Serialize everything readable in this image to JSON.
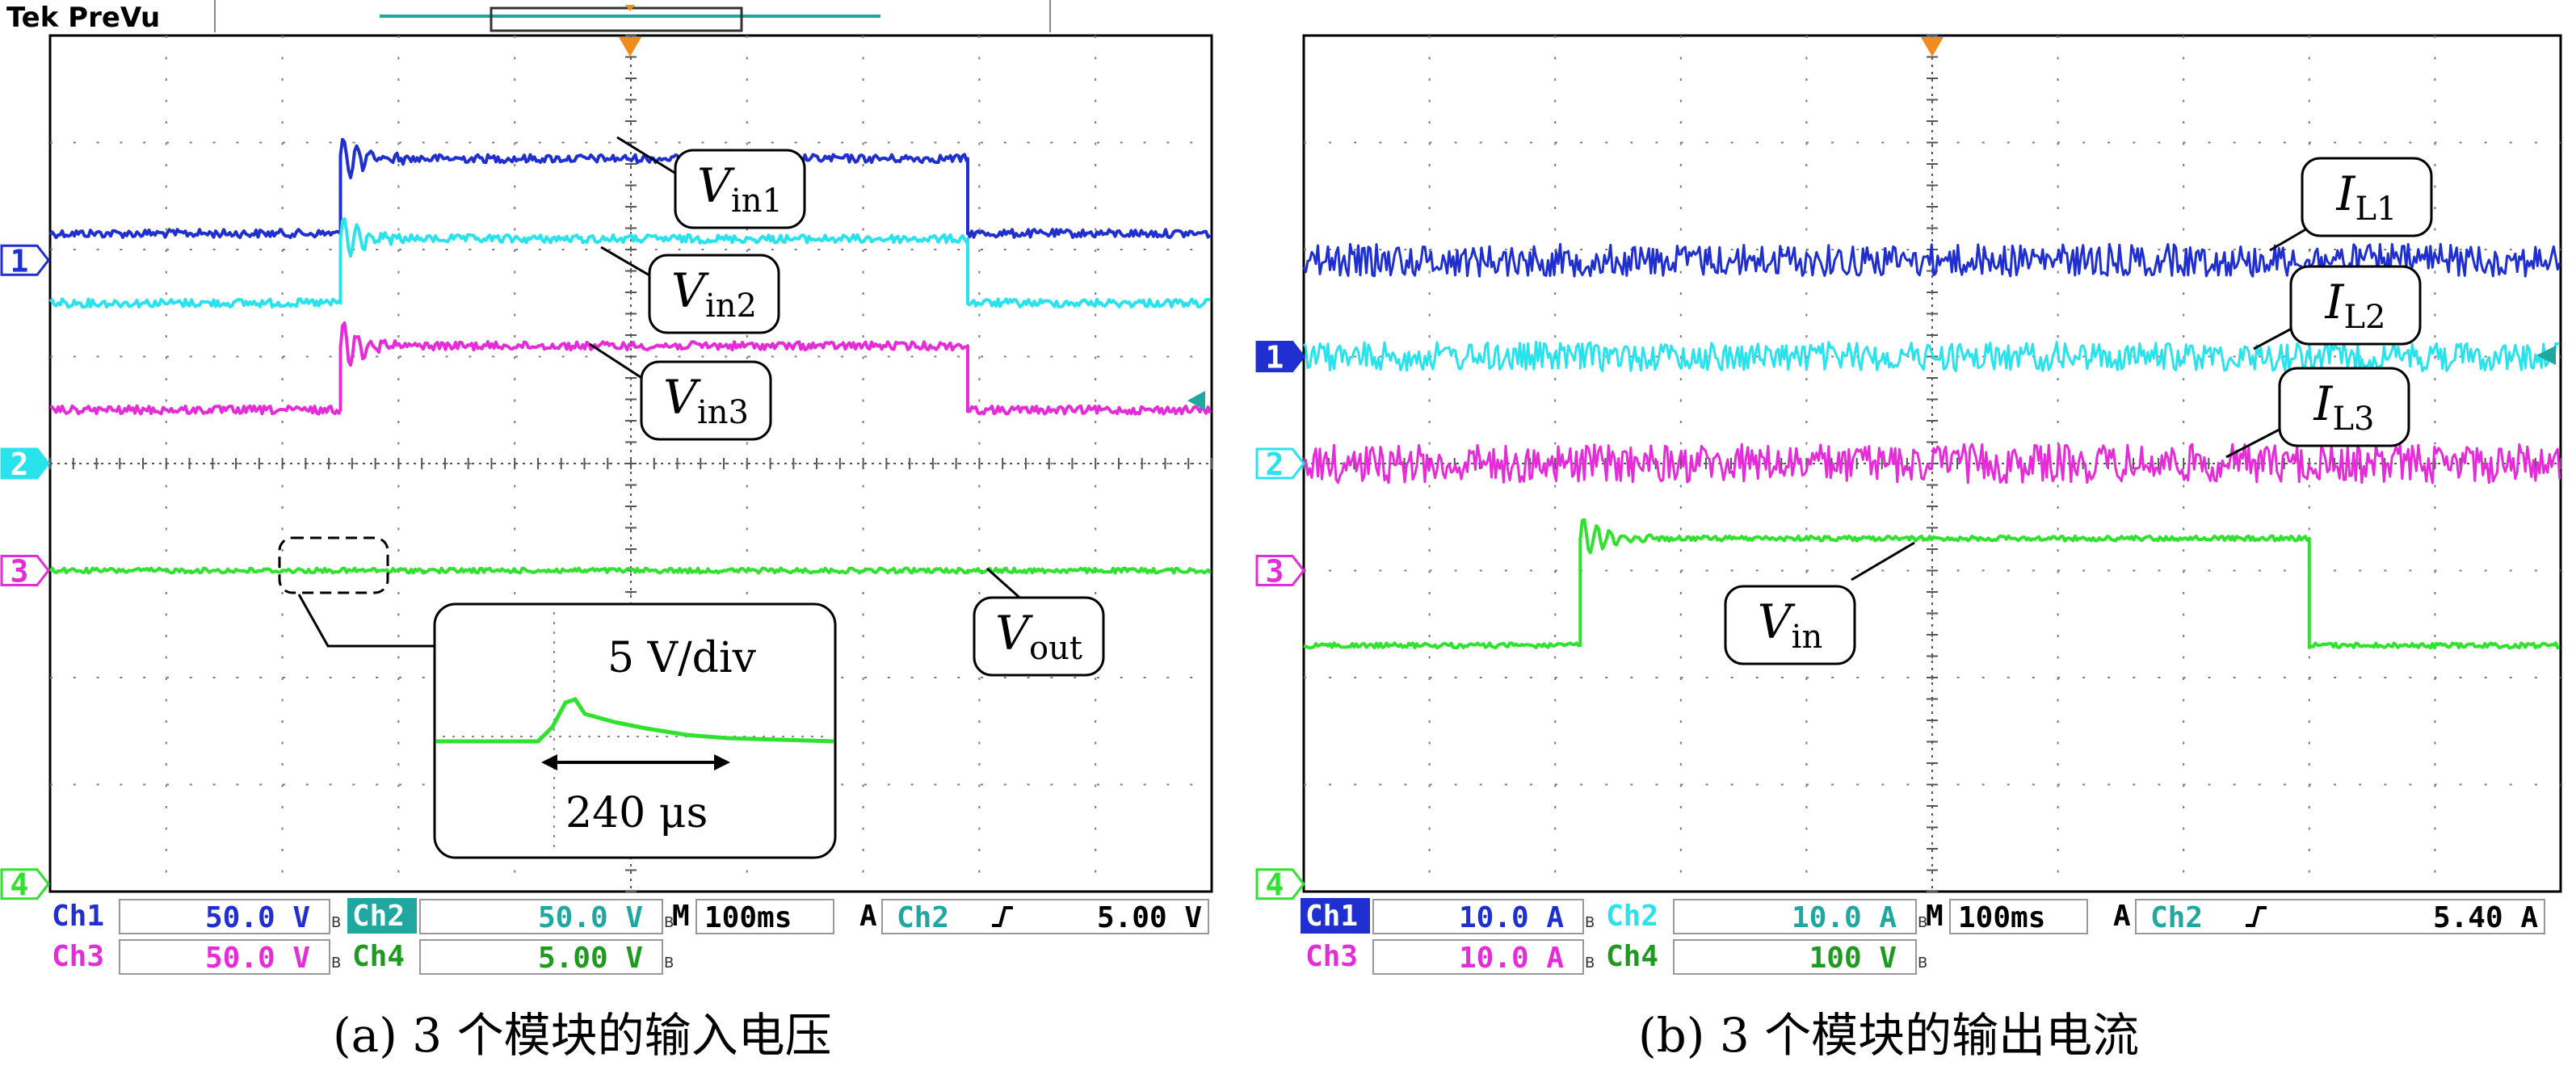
{
  "colors": {
    "ch1": "#1f2fd0",
    "ch2": "#29e3ec",
    "ch3": "#e62cd8",
    "ch4": "#2ee22e",
    "grid": "#7a7a7a",
    "frame": "#000000",
    "trigger": "#f08c1e",
    "header_line": "#1fa7a0"
  },
  "panel_a": {
    "header": "Tek PreVu",
    "trace_labels": [
      {
        "text": "V",
        "sub": "in1"
      },
      {
        "text": "V",
        "sub": "in2"
      },
      {
        "text": "V",
        "sub": "in3"
      },
      {
        "text": "V",
        "sub": "out"
      }
    ],
    "inset": {
      "scale": "5 V/div",
      "duration": "240 μs"
    },
    "ch_markers": [
      "1",
      "2",
      "3",
      "4"
    ],
    "status_row1": {
      "ch1": "Ch1",
      "ch1_val": "50.0 V",
      "ch2": "Ch2",
      "ch2_val": "50.0 V",
      "m": "M",
      "timebase": "100ms",
      "a": "A",
      "trig_ch": "Ch2",
      "trig_level": "5.00 V"
    },
    "status_row2": {
      "ch3": "Ch3",
      "ch3_val": "50.0 V",
      "ch4": "Ch4",
      "ch4_val": "5.00 V"
    },
    "caption": "(a) 3 个模块的输入电压"
  },
  "panel_b": {
    "trace_labels": [
      {
        "text": "I",
        "sub": "L1"
      },
      {
        "text": "I",
        "sub": "L2"
      },
      {
        "text": "I",
        "sub": "L3"
      },
      {
        "text": "V",
        "sub": "in"
      }
    ],
    "ch_markers": [
      "1",
      "2",
      "3",
      "4"
    ],
    "status_row1": {
      "ch1": "Ch1",
      "ch1_val": "10.0 A",
      "ch2": "Ch2",
      "ch2_val": "10.0 A",
      "m": "M",
      "timebase": "100ms",
      "a": "A",
      "trig_ch": "Ch2",
      "trig_level": "5.40 A"
    },
    "status_row2": {
      "ch3": "Ch3",
      "ch3_val": "10.0 A",
      "ch4": "Ch4",
      "ch4_val": "100 V"
    },
    "caption": "(b) 3 个模块的输出电流"
  },
  "chart_data": [
    {
      "type": "line",
      "grid": true,
      "x_divisions": 10,
      "y_divisions": 8,
      "x_unit_per_div": "100ms",
      "x": [
        0,
        2.5,
        2.5,
        7.9,
        7.9,
        10
      ],
      "series": [
        {
          "name": "Vin1",
          "channel": "Ch1",
          "scale": "50.0 V",
          "values": [
            6.15,
            6.15,
            6.85,
            6.85,
            6.15,
            6.15
          ]
        },
        {
          "name": "Vin2",
          "channel": "Ch2",
          "scale": "50.0 V",
          "values": [
            5.5,
            5.5,
            6.1,
            6.1,
            5.5,
            5.5
          ]
        },
        {
          "name": "Vin3",
          "channel": "Ch3",
          "scale": "50.0 V",
          "values": [
            4.5,
            4.5,
            5.1,
            5.1,
            4.5,
            4.5
          ]
        },
        {
          "name": "Vout",
          "channel": "Ch4",
          "scale": "5.00 V",
          "values": [
            3.0,
            3.0,
            3.0,
            3.0,
            3.0,
            3.0
          ]
        }
      ]
    },
    {
      "type": "line",
      "grid": true,
      "x_divisions": 10,
      "y_divisions": 8,
      "x_unit_per_div": "100ms",
      "x": [
        0,
        2.2,
        2.2,
        8.0,
        8.0,
        10
      ],
      "series": [
        {
          "name": "IL1",
          "channel": "Ch1",
          "scale": "10.0 A",
          "values": [
            5.9,
            5.9,
            5.9,
            5.9,
            5.9,
            5.9
          ]
        },
        {
          "name": "IL2",
          "channel": "Ch2",
          "scale": "10.0 A",
          "values": [
            5.0,
            5.0,
            5.0,
            5.0,
            5.0,
            5.0
          ]
        },
        {
          "name": "IL3",
          "channel": "Ch3",
          "scale": "10.0 A",
          "values": [
            4.0,
            4.0,
            4.0,
            4.0,
            4.0,
            4.0
          ]
        },
        {
          "name": "Vin",
          "channel": "Ch4",
          "scale": "100 V",
          "values": [
            2.3,
            2.3,
            3.3,
            3.3,
            2.3,
            2.3
          ]
        }
      ]
    }
  ]
}
